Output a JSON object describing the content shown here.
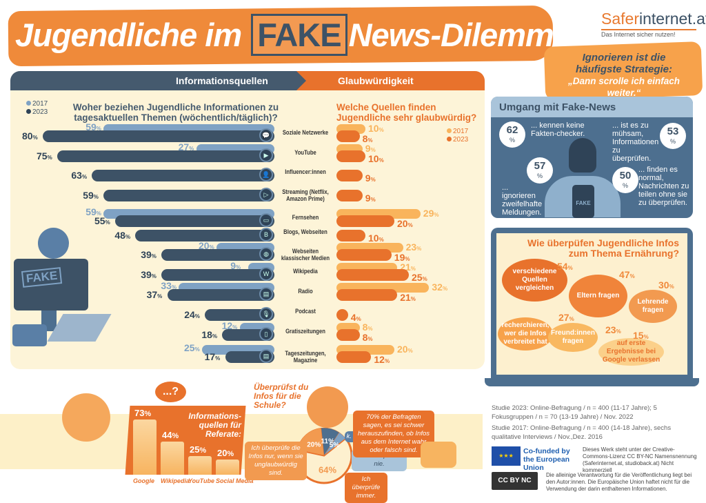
{
  "header": {
    "title_pre": "Jugendliche im",
    "title_fake": "FAKE",
    "title_post": "News-Dilemma",
    "logo_a": "Safer",
    "logo_b": "internet.at",
    "tagline": "Das Internet sicher nutzen!"
  },
  "bubble": {
    "line1": "Ignorieren ist die",
    "line2": "häufigste Strategie:",
    "quote": "„Dann scrolle ich einfach weiter.“"
  },
  "main": {
    "tab_left": "Informationsquellen",
    "tab_right": "Glaubwürdigkeit"
  },
  "colors": {
    "dark": "#455a6e",
    "light_blue": "#7fa2c4",
    "orange": "#e8722c",
    "light_orange": "#f9b45c"
  },
  "chart_data": [
    {
      "type": "bar",
      "title": "Woher beziehen Jugendliche Informationen zu tagesaktuellen Themen (wöchentlich/täglich)?",
      "legend": [
        "2017",
        "2023"
      ],
      "unit": "%",
      "categories": [
        "Soziale Netzwerke",
        "YouTube",
        "Influencer:innen",
        "Streaming (Netflix, Amazon Prime)",
        "Fernsehen",
        "Blogs, Webseiten",
        "Webseiten klassischer Medien",
        "Wikipedia",
        "Radio",
        "Podcast",
        "Gratiszeitungen",
        "Tageszeitungen, Magazine"
      ],
      "series": [
        {
          "name": "2017",
          "values": [
            59,
            27,
            null,
            null,
            59,
            null,
            20,
            9,
            33,
            null,
            12,
            25
          ]
        },
        {
          "name": "2023",
          "values": [
            80,
            75,
            63,
            59,
            55,
            48,
            39,
            39,
            37,
            24,
            18,
            17
          ]
        }
      ]
    },
    {
      "type": "bar",
      "title": "Welche Quellen finden Jugendliche sehr glaubwürdig?",
      "legend": [
        "2017",
        "2023"
      ],
      "unit": "%",
      "series": [
        {
          "name": "2017",
          "values": [
            10,
            9,
            null,
            null,
            29,
            null,
            23,
            21,
            32,
            null,
            8,
            20
          ]
        },
        {
          "name": "2023",
          "values": [
            8,
            10,
            9,
            9,
            20,
            10,
            19,
            25,
            21,
            4,
            8,
            12
          ]
        }
      ]
    },
    {
      "type": "bar",
      "title": "Wie überpüfen Jugendliche Infos zum Thema Ernährung?",
      "categories": [
        "verschiedene Quellen vergleichen",
        "Eltern fragen",
        "Lehrende fragen",
        "recherchieren, wer die Infos verbreitet hat",
        "Freund:innen fragen",
        "auf erste Ergebnisse bei Google verlassen"
      ],
      "values": [
        54,
        47,
        30,
        27,
        23,
        15
      ],
      "unit": "%"
    },
    {
      "type": "bar",
      "title": "Informations-quellen für Referate:",
      "categories": [
        "Google",
        "Wikipedia",
        "YouTube",
        "Social Media"
      ],
      "values": [
        73,
        44,
        25,
        20
      ],
      "unit": "%"
    },
    {
      "type": "pie",
      "title": "Überprüfst du Infos für die Schule?",
      "categories": [
        "Ich überprüfe die Infos nur, wenn sie unglaubwürdig sind.",
        "Ich überprüfe immer.",
        "Ich überprüfe nie.",
        "k. A."
      ],
      "values": [
        64,
        20,
        11,
        5
      ],
      "unit": "%"
    }
  ],
  "umgang": {
    "title": "Umgang mit Fake-News",
    "items": [
      {
        "value": "62",
        "text": "... kennen keine Fakten-checker."
      },
      {
        "value": "53",
        "text": "... ist es zu mühsam, Informationen zu überprüfen."
      },
      {
        "value": "57",
        "text": "... ignorieren zweifelhafte Meldungen."
      },
      {
        "value": "50",
        "text": "... finden es normal, Nachrichten zu teilen ohne sie zu überprüfen."
      }
    ],
    "pct": "%",
    "phone": "FAKE"
  },
  "school": {
    "note": "70% der Befragten sagen, es sei schwer herauszufinden, ob Infos aus dem Internet wahr oder falsch sind.",
    "bubble_q": "...?",
    "monitor": "FAKE"
  },
  "footer": {
    "study2023": "Studie 2023: Online-Befragung / n = 400 (11-17 Jahre); 5 Fokusgruppen / n = 70 (13-19 Jahre) / Nov. 2022",
    "study2017": "Studie 2017: Online-Befragung / n = 400 (14-18 Jahre), sechs qualitative Interviews / Nov.,Dez. 2016",
    "eu": "Co-funded by the European Union",
    "license": "Dieses Werk steht unter der Creative-Commons-Lizenz CC BY-NC Namensnennung (Saferinternet.at, studioback.at) Nicht kommerziell",
    "cc": "CC BY NC",
    "disclaimer": "Die alleinige Verantwortung für die Veröffentlichung liegt bei den Autor:innen. Die Europäische Union haftet nicht für die Verwendung der darin enthaltenen Informationen."
  }
}
